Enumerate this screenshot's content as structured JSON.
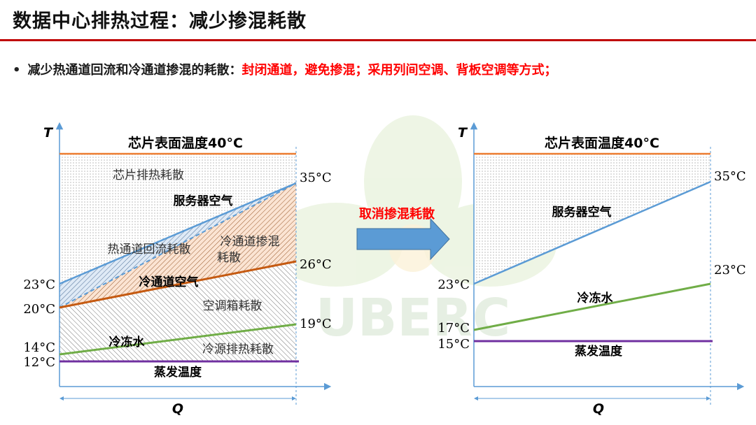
{
  "title": "数据中心排热过程：减少掺混耗散",
  "bullet": {
    "symbol": "•",
    "black_text": "减少热通道回流和冷通道掺混的耗散：",
    "red_text": "封闭通道，避免掺混；采用列间空调、背板空调等方式；"
  },
  "arrow_label": "取消掺混耗散",
  "watermark_text": "UBERC",
  "colors": {
    "chip_line": "#ed7d31",
    "server_air": "#5b9bd5",
    "cold_aisle_air": "#c55a11",
    "chilled_water": "#70ad47",
    "evaporation": "#7030a0",
    "accent_red": "#ff0000",
    "arrow_blue": "#5b9bd5",
    "title_rule": "#c00000"
  },
  "left_diagram": {
    "y_axis_label": "T",
    "x_axis_label": "Q",
    "chip_label": "芯片表面温度40°C",
    "region_labels": {
      "chip_dissipation": "芯片排热耗散",
      "server_air": "服务器空气",
      "hot_return": "热通道回流耗散",
      "cold_mix_line1": "冷通道掺混",
      "cold_mix_line2": "耗散",
      "cold_aisle_air": "冷通道空气",
      "crac_dissipation": "空调箱耗散",
      "chilled_water": "冷冻水",
      "cold_source": "冷源排热耗散",
      "evaporation": "蒸发温度"
    },
    "temps": {
      "server_in": "23°C",
      "server_out": "35°C",
      "cold_in": "20°C",
      "cold_out": "26°C",
      "water_in": "14°C",
      "water_out": "19°C",
      "evap": "12°C"
    }
  },
  "right_diagram": {
    "y_axis_label": "T",
    "x_axis_label": "Q",
    "chip_label": "芯片表面温度40°C",
    "region_labels": {
      "server_air": "服务器空气",
      "chilled_water": "冷冻水",
      "evaporation": "蒸发温度"
    },
    "temps": {
      "server_in": "23°C",
      "server_out": "35°C",
      "water_in": "17°C",
      "water_out": "23°C",
      "evap": "15°C"
    }
  }
}
